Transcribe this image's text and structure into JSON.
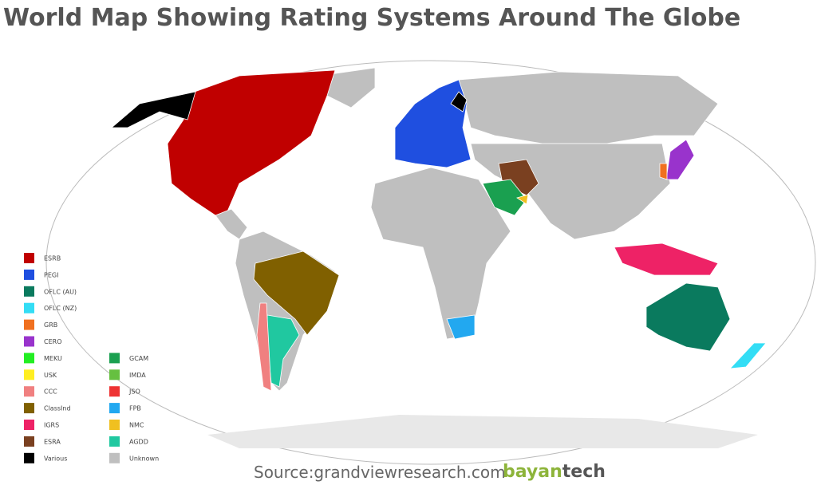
{
  "title": "World Map Showing Rating Systems Around The Globe",
  "legend": [
    {
      "label": "ESRB",
      "color": "#c00000"
    },
    {
      "label": "PEGI",
      "color": "#1f4fe0"
    },
    {
      "label": "OFLC (AU)",
      "color": "#0a7a5e"
    },
    {
      "label": "OFLC (NZ)",
      "color": "#33ddf5"
    },
    {
      "label": "GRB",
      "color": "#f07020"
    },
    {
      "label": "CERO",
      "color": "#9933cc"
    },
    {
      "label": "MEKU",
      "color": "#22ee22"
    },
    {
      "label": "USK",
      "color": "#ffee22"
    },
    {
      "label": "CCC",
      "color": "#f08080"
    },
    {
      "label": "ClassInd",
      "color": "#806000"
    },
    {
      "label": "IGRS",
      "color": "#ee2266"
    },
    {
      "label": "ESRA",
      "color": "#7a4020"
    },
    {
      "label": "Various",
      "color": "#000000"
    },
    {
      "label": "GCAM",
      "color": "#1aa050"
    },
    {
      "label": "IMDA",
      "color": "#66c040"
    },
    {
      "label": "JSO",
      "color": "#ee3333"
    },
    {
      "label": "FPB",
      "color": "#22a8f0"
    },
    {
      "label": "NMC",
      "color": "#f0c020"
    },
    {
      "label": "AGDD",
      "color": "#20c8a0"
    },
    {
      "label": "Unknown",
      "color": "#bfbfbf"
    }
  ],
  "source": "Source:grandviewresearch.com",
  "logo": {
    "part1": "bayan",
    "part2": "tech"
  }
}
